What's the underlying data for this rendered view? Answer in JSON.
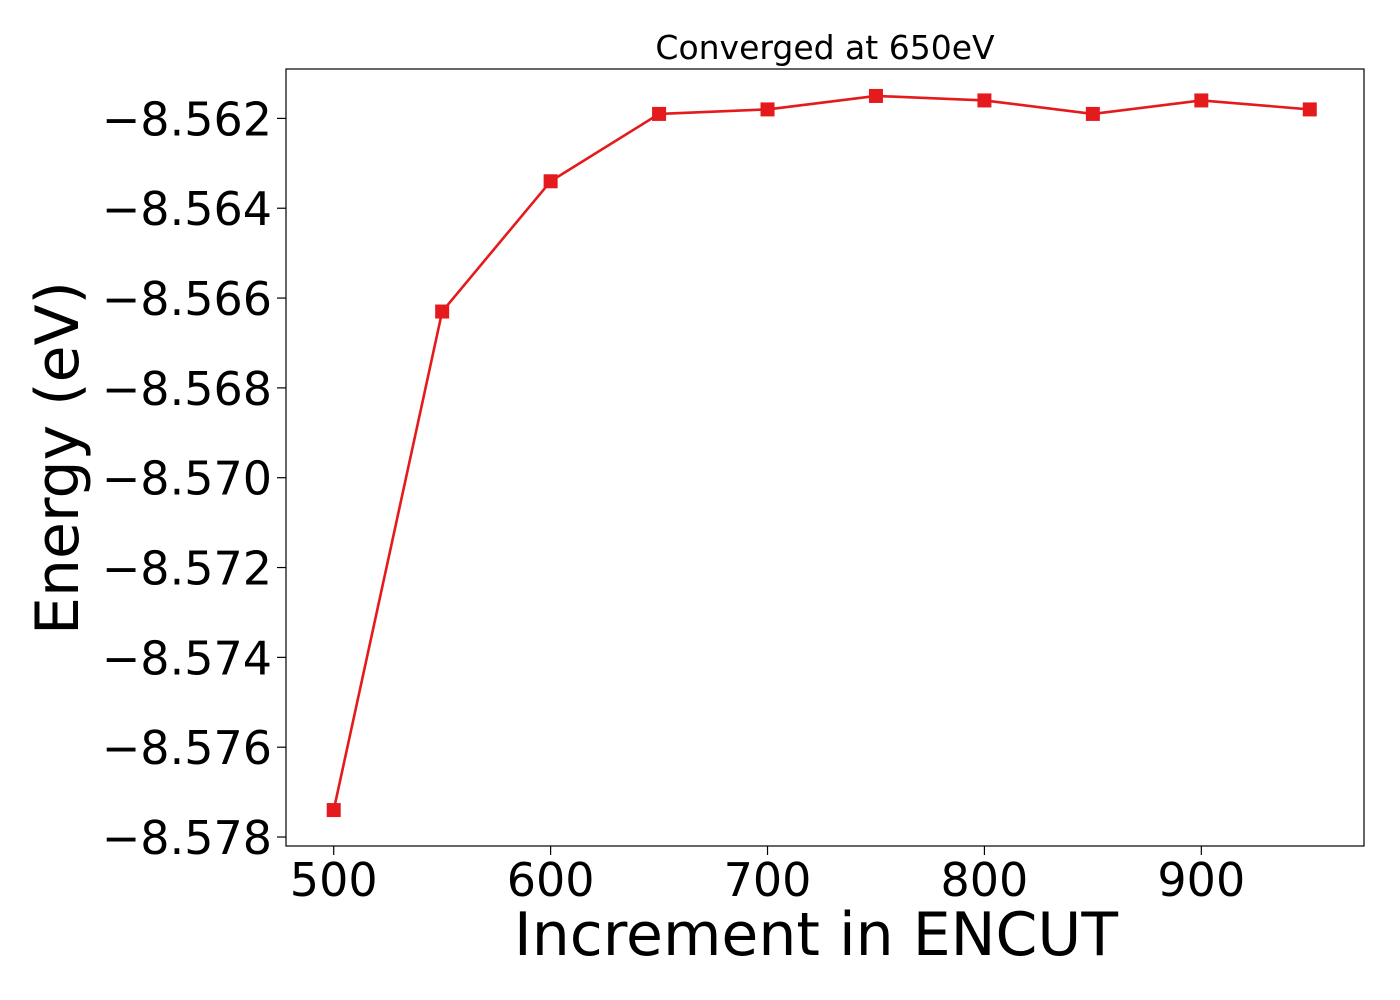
{
  "chart_data": {
    "type": "line",
    "title": "Converged at 650eV",
    "xlabel": "Increment in ENCUT",
    "ylabel": "Energy (eV)",
    "xlim": [
      478,
      975
    ],
    "ylim": [
      -8.5782,
      -8.5609
    ],
    "xticks": [
      500,
      600,
      700,
      800,
      900
    ],
    "xtick_labels": [
      "500",
      "600",
      "700",
      "800",
      "900"
    ],
    "yticks": [
      -8.562,
      -8.564,
      -8.566,
      -8.568,
      -8.57,
      -8.572,
      -8.574,
      -8.576,
      -8.578
    ],
    "ytick_labels": [
      "−8.562",
      "−8.564",
      "−8.566",
      "−8.568",
      "−8.570",
      "−8.572",
      "−8.574",
      "−8.576",
      "−8.578"
    ],
    "grid": false,
    "legend": "none",
    "series": [
      {
        "color": "#e41a1c",
        "marker": "square",
        "x": [
          500,
          550,
          600,
          650,
          700,
          750,
          800,
          850,
          900,
          950
        ],
        "y": [
          -8.5774,
          -8.5663,
          -8.5634,
          -8.5619,
          -8.5618,
          -8.5615,
          -8.5616,
          -8.5619,
          -8.5616,
          -8.5618
        ]
      }
    ]
  }
}
